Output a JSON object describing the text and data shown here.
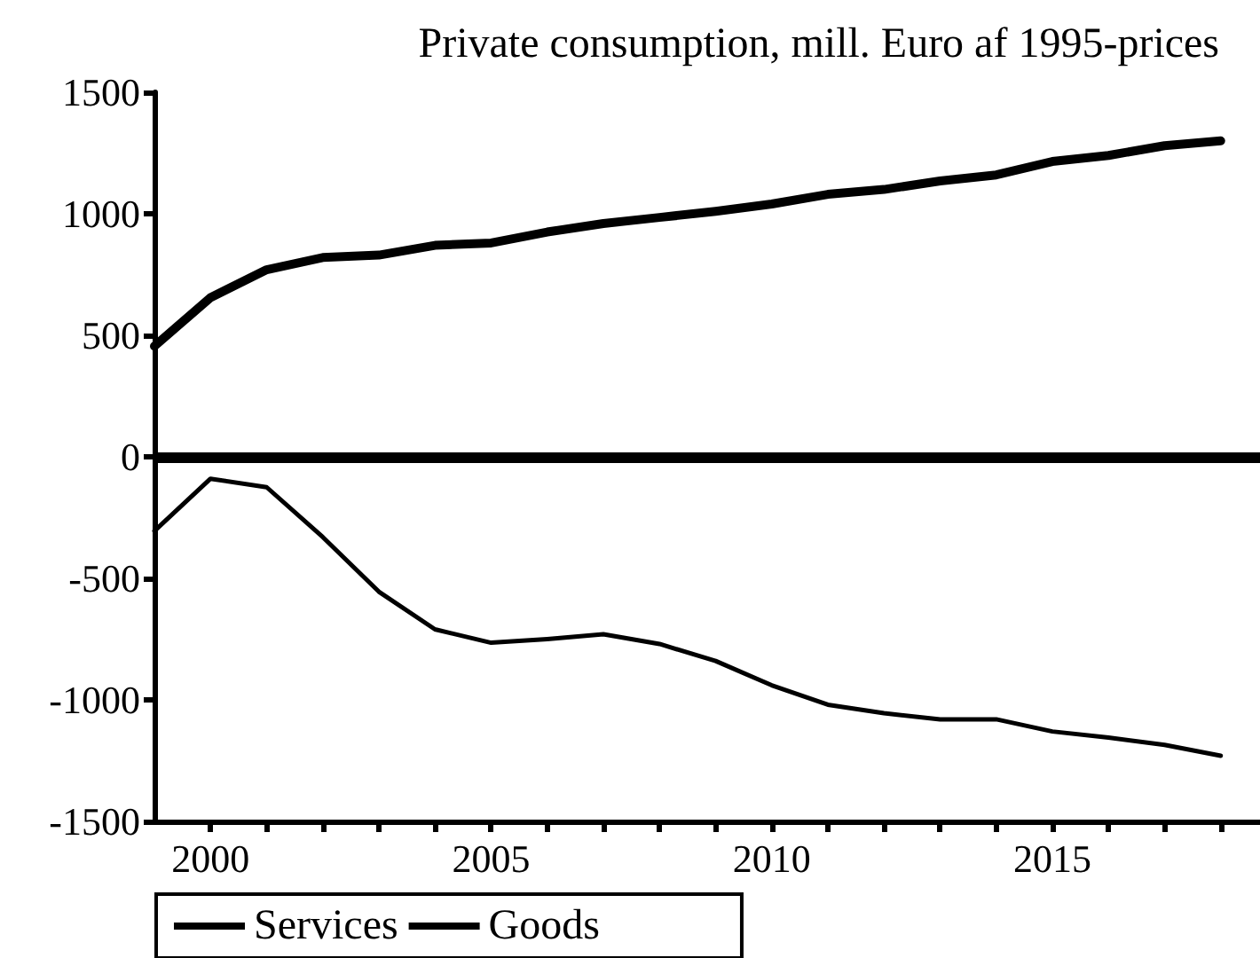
{
  "chart_data": {
    "type": "line",
    "title": "Private consumption, mill. Euro af 1995-prices",
    "x": [
      1999,
      2000,
      2001,
      2002,
      2003,
      2004,
      2005,
      2006,
      2007,
      2008,
      2009,
      2010,
      2011,
      2012,
      2013,
      2014,
      2015,
      2016,
      2017,
      2018
    ],
    "series": [
      {
        "name": "Services",
        "color": "#000000",
        "values": [
          455,
          655,
          770,
          820,
          830,
          870,
          880,
          925,
          960,
          985,
          1010,
          1040,
          1080,
          1100,
          1135,
          1160,
          1215,
          1240,
          1280,
          1300
        ]
      },
      {
        "name": "Goods",
        "color": "#000000",
        "values": [
          -305,
          -90,
          -125,
          -330,
          -555,
          -710,
          -765,
          -750,
          -730,
          -770,
          -840,
          -940,
          -1020,
          -1055,
          -1080,
          -1080,
          -1130,
          -1155,
          -1185,
          -1230
        ]
      }
    ],
    "xlim": [
      1999,
      2018.7
    ],
    "xticks": [
      2000,
      {
        "value": 2001,
        "label": null
      },
      {
        "value": 2002,
        "label": null
      },
      {
        "value": 2003,
        "label": null
      },
      {
        "value": 2004,
        "label": null
      },
      2005,
      {
        "value": 2006,
        "label": null
      },
      {
        "value": 2007,
        "label": null
      },
      {
        "value": 2008,
        "label": null
      },
      {
        "value": 2009,
        "label": null
      },
      2010,
      {
        "value": 2011,
        "label": null
      },
      {
        "value": 2012,
        "label": null
      },
      {
        "value": 2013,
        "label": null
      },
      {
        "value": 2014,
        "label": null
      },
      2015,
      {
        "value": 2016,
        "label": null
      },
      {
        "value": 2017,
        "label": null
      },
      {
        "value": 2018,
        "label": null
      }
    ],
    "ylim": [
      -1500,
      1500
    ],
    "yticks": [
      -1500,
      -1000,
      -500,
      0,
      500,
      1000,
      1500
    ],
    "ref_lines": [
      {
        "axis": "y",
        "value": 0,
        "color": "#000000",
        "line_style": "solid"
      }
    ],
    "grid": false,
    "legend": "bottom left",
    "marker": "none",
    "line_style": "solid"
  }
}
